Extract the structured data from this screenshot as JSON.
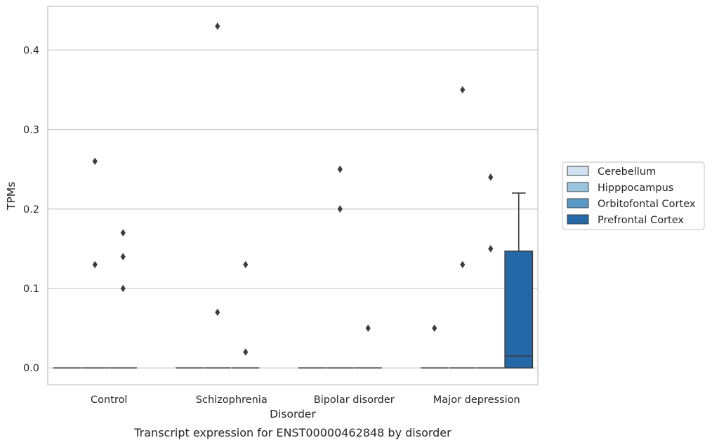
{
  "chart_data": {
    "type": "box",
    "title": "",
    "caption": "Transcript expression for ENST00000462848 by disorder",
    "xlabel": "Disorder",
    "ylabel": "TPMs",
    "ylim": [
      -0.021,
      0.455
    ],
    "yticks": [
      "0.0",
      "0.1",
      "0.2",
      "0.3",
      "0.4"
    ],
    "categories": [
      "Control",
      "Schizophrenia",
      "Bipolar disorder",
      "Major depression"
    ],
    "grid": "horizontal",
    "legend_position": "right",
    "series": [
      {
        "name": "Cerebellum",
        "color": "#d0e2f1",
        "boxes": [
          {
            "min": 0,
            "q1": 0,
            "median": 0,
            "q3": 0,
            "max": 0,
            "outliers": []
          },
          {
            "min": 0,
            "q1": 0,
            "median": 0,
            "q3": 0,
            "max": 0,
            "outliers": []
          },
          {
            "min": 0,
            "q1": 0,
            "median": 0,
            "q3": 0,
            "max": 0,
            "outliers": []
          },
          {
            "min": 0,
            "q1": 0,
            "median": 0,
            "q3": 0,
            "max": 0,
            "outliers": []
          }
        ]
      },
      {
        "name": "Hipppocampus",
        "color": "#9ac5de",
        "boxes": [
          {
            "min": 0,
            "q1": 0,
            "median": 0,
            "q3": 0,
            "max": 0,
            "outliers": [
              0.26,
              0.13
            ]
          },
          {
            "min": 0,
            "q1": 0,
            "median": 0,
            "q3": 0,
            "max": 0,
            "outliers": [
              0.43,
              0.07
            ]
          },
          {
            "min": 0,
            "q1": 0,
            "median": 0,
            "q3": 0,
            "max": 0,
            "outliers": [
              0.25,
              0.2
            ]
          },
          {
            "min": 0,
            "q1": 0,
            "median": 0,
            "q3": 0,
            "max": 0,
            "outliers": [
              0.35,
              0.13
            ]
          }
        ]
      },
      {
        "name": "Orbitofontal Cortex",
        "color": "#5a9ac6",
        "boxes": [
          {
            "min": 0,
            "q1": 0,
            "median": 0,
            "q3": 0,
            "max": 0,
            "outliers": [
              0.17,
              0.14,
              0.1
            ]
          },
          {
            "min": 0,
            "q1": 0,
            "median": 0,
            "q3": 0,
            "max": 0,
            "outliers": [
              0.13,
              0.02
            ]
          },
          {
            "min": 0,
            "q1": 0,
            "median": 0,
            "q3": 0,
            "max": 0,
            "outliers": [
              0.05
            ]
          },
          {
            "min": 0,
            "q1": 0,
            "median": 0,
            "q3": 0,
            "max": 0,
            "outliers": [
              0.24,
              0.15
            ]
          }
        ]
      },
      {
        "name": "Prefrontal Cortex",
        "color": "#2468a8",
        "boxes": [
          null,
          null,
          null,
          {
            "min": 0,
            "q1": 0,
            "median": 0.015,
            "q3": 0.147,
            "max": 0.22,
            "outliers": []
          }
        ]
      }
    ],
    "extra_outliers": [
      {
        "category": 3,
        "value": 0.05,
        "offset_slot": 0
      }
    ]
  }
}
